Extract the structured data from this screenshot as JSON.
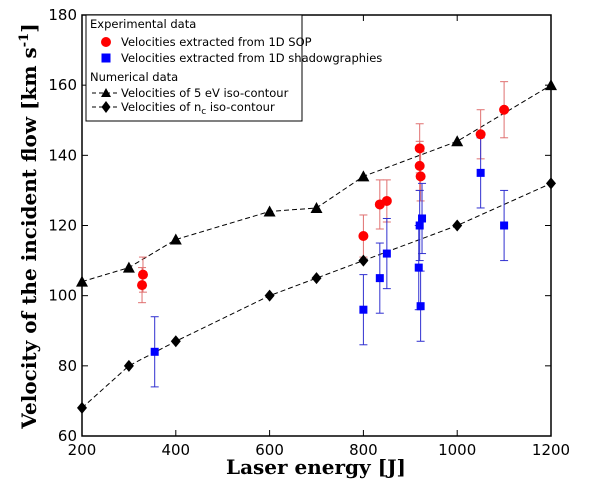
{
  "chart_data": {
    "type": "scatter",
    "xlabel": "Laser energy [J]",
    "ylabel_main": "Velocity of the incident flow [km s",
    "ylabel_exp": "-1",
    "ylabel_close": "]",
    "xlim": [
      200,
      1200
    ],
    "ylim": [
      60,
      180
    ],
    "xticks": [
      200,
      400,
      600,
      800,
      1000,
      1200
    ],
    "yticks": [
      60,
      80,
      100,
      120,
      140,
      160,
      180
    ],
    "grid": false,
    "legend": {
      "placement": "top-left",
      "group1_title": "Experimental data",
      "group2_title": "Numerical data",
      "nc_label_pre": "Velocities of n",
      "nc_label_sub": "c",
      "nc_label_post": " iso-contour"
    },
    "series": [
      {
        "name": "Velocities extracted from 1D SOP",
        "marker": "circle",
        "color": "#ff0000",
        "errorbar_color": "#e07070",
        "points": [
          {
            "x": 328,
            "y": 103,
            "err": 5
          },
          {
            "x": 330,
            "y": 106,
            "err": 5
          },
          {
            "x": 800,
            "y": 117,
            "err": 6
          },
          {
            "x": 835,
            "y": 126,
            "err": 7
          },
          {
            "x": 850,
            "y": 127,
            "err": 6
          },
          {
            "x": 920,
            "y": 142,
            "err": 7
          },
          {
            "x": 920,
            "y": 137,
            "err": 7
          },
          {
            "x": 922,
            "y": 134,
            "err": 7
          },
          {
            "x": 1050,
            "y": 146,
            "err": 7
          },
          {
            "x": 1100,
            "y": 153,
            "err": 8
          }
        ]
      },
      {
        "name": "Velocities extracted from 1D shadowgraphies",
        "marker": "square",
        "color": "#0000ff",
        "errorbar_color": "#3030d0",
        "points": [
          {
            "x": 355,
            "y": 84,
            "err": 10
          },
          {
            "x": 800,
            "y": 96,
            "err": 10
          },
          {
            "x": 835,
            "y": 105,
            "err": 10
          },
          {
            "x": 850,
            "y": 112,
            "err": 10
          },
          {
            "x": 918,
            "y": 108,
            "err": 12
          },
          {
            "x": 920,
            "y": 120,
            "err": 10
          },
          {
            "x": 922,
            "y": 97,
            "err": 10
          },
          {
            "x": 925,
            "y": 122,
            "err": 10
          },
          {
            "x": 1050,
            "y": 135,
            "err": 10
          },
          {
            "x": 1100,
            "y": 120,
            "err": 10
          }
        ]
      },
      {
        "name": "Velocities of 5 eV iso-contour",
        "marker": "triangle",
        "color": "#000000",
        "line": "dashed",
        "points": [
          {
            "x": 200,
            "y": 104
          },
          {
            "x": 300,
            "y": 108
          },
          {
            "x": 400,
            "y": 116
          },
          {
            "x": 600,
            "y": 124
          },
          {
            "x": 700,
            "y": 125
          },
          {
            "x": 800,
            "y": 134
          },
          {
            "x": 1000,
            "y": 144
          },
          {
            "x": 1200,
            "y": 160
          }
        ]
      },
      {
        "name": "Velocities of nc iso-contour",
        "marker": "diamond",
        "color": "#000000",
        "line": "dashed",
        "points": [
          {
            "x": 200,
            "y": 68
          },
          {
            "x": 300,
            "y": 80
          },
          {
            "x": 400,
            "y": 87
          },
          {
            "x": 600,
            "y": 100
          },
          {
            "x": 700,
            "y": 105
          },
          {
            "x": 800,
            "y": 110
          },
          {
            "x": 1000,
            "y": 120
          },
          {
            "x": 1200,
            "y": 132
          }
        ]
      }
    ]
  }
}
